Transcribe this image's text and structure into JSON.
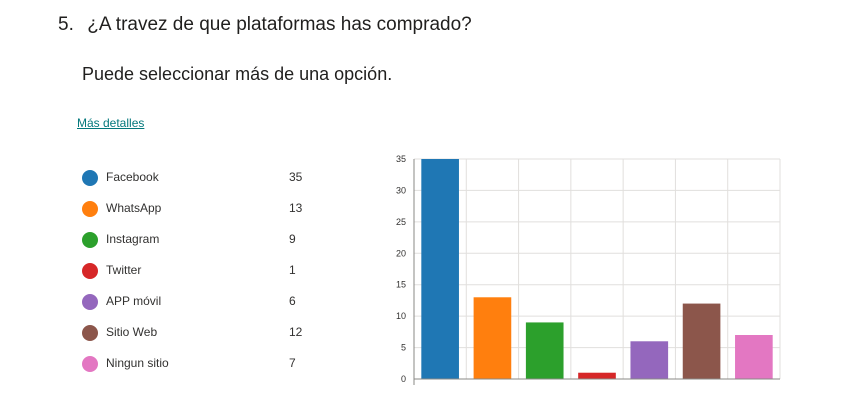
{
  "question": {
    "number": "5.",
    "title": "¿A travez de que plataformas has comprado?",
    "subtitle": "Puede seleccionar más de una opción."
  },
  "details_link": "Más detalles",
  "legend": [
    {
      "label": "Facebook",
      "count": "35",
      "color": "#1f77b4"
    },
    {
      "label": "WhatsApp",
      "count": "13",
      "color": "#ff7f0e"
    },
    {
      "label": "Instagram",
      "count": "9",
      "color": "#2ca02c"
    },
    {
      "label": "Twitter",
      "count": "1",
      "color": "#d62728"
    },
    {
      "label": "APP móvil",
      "count": "6",
      "color": "#9467bd"
    },
    {
      "label": "Sitio Web",
      "count": "12",
      "color": "#8c564b"
    },
    {
      "label": "Ningun sitio",
      "count": "7",
      "color": "#e377c2"
    }
  ],
  "chart_data": {
    "type": "bar",
    "categories": [
      "Facebook",
      "WhatsApp",
      "Instagram",
      "Twitter",
      "APP móvil",
      "Sitio Web",
      "Ningun sitio"
    ],
    "values": [
      35,
      13,
      9,
      1,
      6,
      12,
      7
    ],
    "colors": [
      "#1f77b4",
      "#ff7f0e",
      "#2ca02c",
      "#d62728",
      "#9467bd",
      "#8c564b",
      "#e377c2"
    ],
    "ylim": [
      0,
      35
    ],
    "yticks": [
      "0",
      "5",
      "10",
      "15",
      "20",
      "25",
      "30",
      "35"
    ],
    "grid": true
  }
}
